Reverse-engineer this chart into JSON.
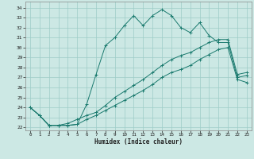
{
  "xlabel": "Humidex (Indice chaleur)",
  "bg_color": "#cce8e4",
  "grid_color": "#9dccc7",
  "line_color": "#1a7a6e",
  "xlim": [
    -0.5,
    23.5
  ],
  "ylim": [
    21.7,
    34.6
  ],
  "xticks": [
    0,
    1,
    2,
    3,
    4,
    5,
    6,
    7,
    8,
    9,
    10,
    11,
    12,
    13,
    14,
    15,
    16,
    17,
    18,
    19,
    20,
    21,
    22,
    23
  ],
  "yticks": [
    22,
    23,
    24,
    25,
    26,
    27,
    28,
    29,
    30,
    31,
    32,
    33,
    34
  ],
  "series1_x": [
    0,
    1,
    2,
    3,
    4,
    5,
    6,
    7,
    8,
    9,
    10,
    11,
    12,
    13,
    14,
    15,
    16,
    17,
    18,
    19,
    20,
    21,
    22,
    23
  ],
  "series1_y": [
    24.0,
    23.2,
    22.2,
    22.2,
    22.2,
    22.3,
    24.3,
    27.3,
    30.2,
    31.0,
    32.2,
    33.2,
    32.2,
    33.2,
    33.8,
    33.2,
    32.0,
    31.5,
    32.5,
    31.2,
    30.5,
    30.5,
    27.0,
    27.2
  ],
  "series2_x": [
    0,
    1,
    2,
    3,
    4,
    5,
    6,
    7,
    8,
    9,
    10,
    11,
    12,
    13,
    14,
    15,
    16,
    17,
    18,
    19,
    20,
    21,
    22,
    23
  ],
  "series2_y": [
    24.0,
    23.2,
    22.2,
    22.2,
    22.2,
    22.3,
    22.8,
    23.2,
    23.7,
    24.2,
    24.7,
    25.2,
    25.7,
    26.3,
    27.0,
    27.5,
    27.8,
    28.2,
    28.8,
    29.3,
    29.8,
    30.0,
    26.8,
    26.5
  ],
  "series3_x": [
    0,
    1,
    2,
    3,
    4,
    5,
    6,
    7,
    8,
    9,
    10,
    11,
    12,
    13,
    14,
    15,
    16,
    17,
    18,
    19,
    20,
    21,
    22,
    23
  ],
  "series3_y": [
    24.0,
    23.2,
    22.2,
    22.2,
    22.4,
    22.8,
    23.2,
    23.5,
    24.2,
    25.0,
    25.6,
    26.2,
    26.8,
    27.5,
    28.2,
    28.8,
    29.2,
    29.5,
    30.0,
    30.5,
    30.8,
    30.8,
    27.3,
    27.5
  ]
}
